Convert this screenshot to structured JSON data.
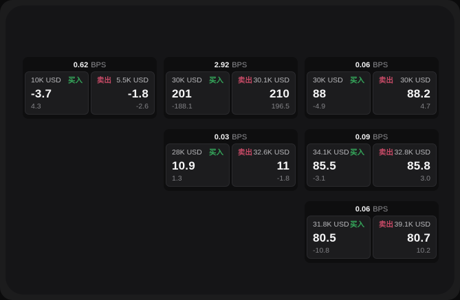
{
  "theme": {
    "page_bg": "#0b0b0c",
    "window_bg": "#1c1c1d",
    "panel_bg": "#151517",
    "card_bg": "#0e0e0f",
    "tile_bg": "#1c1c1e",
    "tile_border": "#2a2a2d",
    "text_primary": "#f5f5f6",
    "text_secondary": "#b7b7ba",
    "text_muted": "#828286",
    "buy_color": "#35a85b",
    "sell_color": "#c64a66"
  },
  "labels": {
    "bps_unit": "BPS",
    "buy": "买入",
    "sell": "卖出"
  },
  "cards": [
    {
      "grid": {
        "col": 1,
        "row": 1
      },
      "bps": "0.62",
      "buy": {
        "amount": "10K USD",
        "price": "-3.7",
        "delta": "4.3"
      },
      "sell": {
        "amount": "5.5K USD",
        "price": "-1.8",
        "delta": "-2.6"
      }
    },
    {
      "grid": {
        "col": 2,
        "row": 1
      },
      "bps": "2.92",
      "buy": {
        "amount": "30K USD",
        "price": "201",
        "delta": "-188.1"
      },
      "sell": {
        "amount": "30.1K USD",
        "price": "210",
        "delta": "196.5"
      }
    },
    {
      "grid": {
        "col": 3,
        "row": 1
      },
      "bps": "0.06",
      "buy": {
        "amount": "30K USD",
        "price": "88",
        "delta": "-4.9"
      },
      "sell": {
        "amount": "30K USD",
        "price": "88.2",
        "delta": "4.7"
      }
    },
    {
      "grid": {
        "col": 2,
        "row": 2
      },
      "bps": "0.03",
      "buy": {
        "amount": "28K USD",
        "price": "10.9",
        "delta": "1.3"
      },
      "sell": {
        "amount": "32.6K USD",
        "price": "11",
        "delta": "-1.8"
      }
    },
    {
      "grid": {
        "col": 3,
        "row": 2
      },
      "bps": "0.09",
      "buy": {
        "amount": "34.1K USD",
        "price": "85.5",
        "delta": "-3.1"
      },
      "sell": {
        "amount": "32.8K USD",
        "price": "85.8",
        "delta": "3.0"
      }
    },
    {
      "grid": {
        "col": 3,
        "row": 3
      },
      "bps": "0.06",
      "buy": {
        "amount": "31.8K USD",
        "price": "80.5",
        "delta": "-10.8"
      },
      "sell": {
        "amount": "39.1K USD",
        "price": "80.7",
        "delta": "10.2"
      }
    }
  ],
  "layout_grid": {
    "col_lefts": [
      33,
      238,
      443
    ],
    "row_tops": [
      83,
      188,
      293
    ]
  }
}
